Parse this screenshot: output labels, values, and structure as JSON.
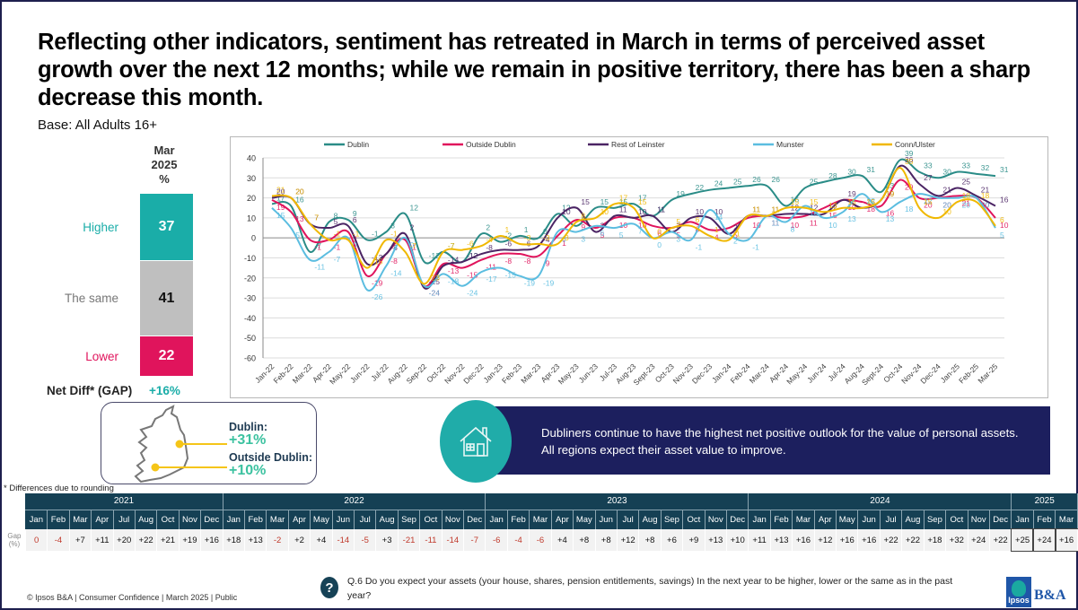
{
  "title": "Reflecting other indicators, sentiment has retreated in March in terms of perceived asset growth over the next 12 months; while we remain in positive territory, there has been a sharp decrease this month.",
  "base": "Base: All Adults 16+",
  "summary": {
    "column_header": [
      "Mar",
      "2025",
      "%"
    ],
    "rows": [
      {
        "label": "Higher",
        "value": "37",
        "pct": 37,
        "color": "#1aada8",
        "label_color": "#1aada8",
        "text_color": "#ffffff"
      },
      {
        "label": "The same",
        "value": "41",
        "pct": 41,
        "color": "#bfbfbf",
        "label_color": "#777777",
        "text_color": "#111111"
      },
      {
        "label": "Lower",
        "value": "22",
        "pct": 22,
        "color": "#e0145c",
        "label_color": "#e0145c",
        "text_color": "#ffffff"
      }
    ],
    "net_label": "Net Diff* (GAP)",
    "net_value": "+16%"
  },
  "map": {
    "dublin_label": "Dublin:",
    "dublin_value": "+31%",
    "outside_label": "Outside Dublin:",
    "outside_value": "+10%"
  },
  "footnote": "* Differences due to rounding",
  "insight": "Dubliners continue to have the highest net positive outlook for the value of personal assets. All regions expect their asset value to improve.",
  "chart_data": {
    "type": "line",
    "title": "",
    "xlabel": "",
    "ylabel": "",
    "ylim": [
      -60,
      40
    ],
    "yticks": [
      40,
      30,
      20,
      10,
      0,
      -10,
      -20,
      -30,
      -40,
      -50,
      -60
    ],
    "grid": true,
    "legend": "top",
    "x": [
      "Jan-22",
      "Feb-22",
      "Mar-22",
      "Apr-22",
      "May-22",
      "Jun-22",
      "Jul-22",
      "Aug-22",
      "Sep-22",
      "Oct-22",
      "Nov-22",
      "Dec-22",
      "Jan-23",
      "Feb-23",
      "Mar-23",
      "Apr-23",
      "May-23",
      "Jun-23",
      "Jul-23",
      "Aug-23",
      "Sept-23",
      "Oct-23",
      "Nov-23",
      "Dec-23",
      "Jan-24",
      "Feb-24",
      "Mar-24",
      "Apr-24",
      "May-24",
      "Jun-24",
      "Jul-24",
      "Aug-24",
      "Sept-24",
      "Oct-24",
      "Nov-24",
      "Dec-24",
      "Jan-25",
      "Feb-25",
      "Mar-25"
    ],
    "series": [
      {
        "name": "Dublin",
        "color": "#2a8c87",
        "values": [
          17,
          16,
          -7,
          8,
          9,
          -1,
          3,
          12,
          -12,
          -7,
          -12,
          2,
          -2,
          1,
          0,
          12,
          6,
          15,
          15,
          17,
          11,
          19,
          22,
          24,
          25,
          26,
          26,
          16,
          25,
          28,
          30,
          31,
          23,
          39,
          33,
          30,
          33,
          32,
          31
        ]
      },
      {
        "name": "Outside Dublin",
        "color": "#e0145c",
        "values": [
          19,
          13,
          -1,
          -1,
          3,
          -19,
          -8,
          -1,
          -24,
          -13,
          -15,
          -11,
          -8,
          -8,
          -9,
          1,
          9,
          5,
          10,
          10,
          6,
          5,
          8,
          4,
          5,
          10,
          11,
          10,
          11,
          15,
          19,
          18,
          16,
          29,
          20,
          20,
          21,
          20,
          10
        ]
      },
      {
        "name": "Rest of Leinster",
        "color": "#4b2464",
        "values": [
          20,
          20,
          7,
          5,
          6,
          -13,
          -8,
          2,
          -25,
          -14,
          -12,
          -8,
          -6,
          -6,
          -4,
          10,
          15,
          3,
          11,
          10,
          11,
          3,
          10,
          10,
          2,
          11,
          11,
          12,
          12,
          12,
          19,
          15,
          19,
          36,
          27,
          21,
          25,
          21,
          16
        ]
      },
      {
        "name": "Munster",
        "color": "#5bbde0",
        "values": [
          15,
          5,
          -11,
          -7,
          0,
          -26,
          -14,
          0,
          -24,
          -18,
          -24,
          -17,
          -15,
          -19,
          -19,
          3,
          3,
          6,
          5,
          7,
          0,
          3,
          -1,
          14,
          2,
          -1,
          11,
          8,
          16,
          10,
          13,
          22,
          13,
          18,
          22,
          20,
          20,
          20,
          5
        ]
      },
      {
        "name": "Conn/Ulster",
        "color": "#f0b800",
        "values": [
          21,
          20,
          7,
          -1,
          -1,
          -15,
          -1,
          -7,
          -23,
          -7,
          -6,
          -4,
          1,
          -3,
          -3,
          -3,
          8,
          10,
          17,
          15,
          0,
          5,
          6,
          1,
          -1,
          11,
          11,
          15,
          15,
          13,
          15,
          15,
          19,
          35,
          15,
          10,
          18,
          18,
          6
        ]
      }
    ]
  },
  "gap_table": {
    "row_label": "Gap (%)",
    "years": [
      {
        "year": "2021",
        "months": [
          "Jan",
          "Feb",
          "Mar",
          "Apr",
          "Jul",
          "Aug",
          "Oct",
          "Nov",
          "Dec"
        ],
        "values": [
          "0",
          "-4",
          "+7",
          "+11",
          "+20",
          "+22",
          "+21",
          "+19",
          "+16"
        ]
      },
      {
        "year": "2022",
        "months": [
          "Jan",
          "Feb",
          "Mar",
          "Apr",
          "May",
          "Jun",
          "Jul",
          "Aug",
          "Sep",
          "Oct",
          "Nov",
          "Dec"
        ],
        "values": [
          "+18",
          "+13",
          "-2",
          "+2",
          "+4",
          "-14",
          "-5",
          "+3",
          "-21",
          "-11",
          "-14",
          "-7"
        ]
      },
      {
        "year": "2023",
        "months": [
          "Jan",
          "Feb",
          "Mar",
          "Apr",
          "May",
          "Jun",
          "Jul",
          "Aug",
          "Sep",
          "Oct",
          "Nov",
          "Dec"
        ],
        "values": [
          "-6",
          "-4",
          "-6",
          "+4",
          "+8",
          "+8",
          "+12",
          "+8",
          "+6",
          "+9",
          "+13",
          "+10"
        ]
      },
      {
        "year": "2024",
        "months": [
          "Jan",
          "Feb",
          "Mar",
          "Apr",
          "May",
          "Jun",
          "Jul",
          "Aug",
          "Sep",
          "Oct",
          "Nov",
          "Dec"
        ],
        "values": [
          "+11",
          "+13",
          "+16",
          "+12",
          "+16",
          "+16",
          "+22",
          "+22",
          "+18",
          "+32",
          "+24",
          "+22"
        ]
      },
      {
        "year": "2025",
        "months": [
          "Jan",
          "Feb",
          "Mar"
        ],
        "values": [
          "+25",
          "+24",
          "+16"
        ]
      }
    ]
  },
  "question": "Q.6 Do you expect your assets (your house, shares, pension entitlements, savings) In the next year to be higher, lower or the same as in the past year?",
  "copyright": "© Ipsos B&A | Consumer Confidence | March 2025 | Public",
  "logo": {
    "ipsos": "Ipsos",
    "ba": "B&A"
  }
}
